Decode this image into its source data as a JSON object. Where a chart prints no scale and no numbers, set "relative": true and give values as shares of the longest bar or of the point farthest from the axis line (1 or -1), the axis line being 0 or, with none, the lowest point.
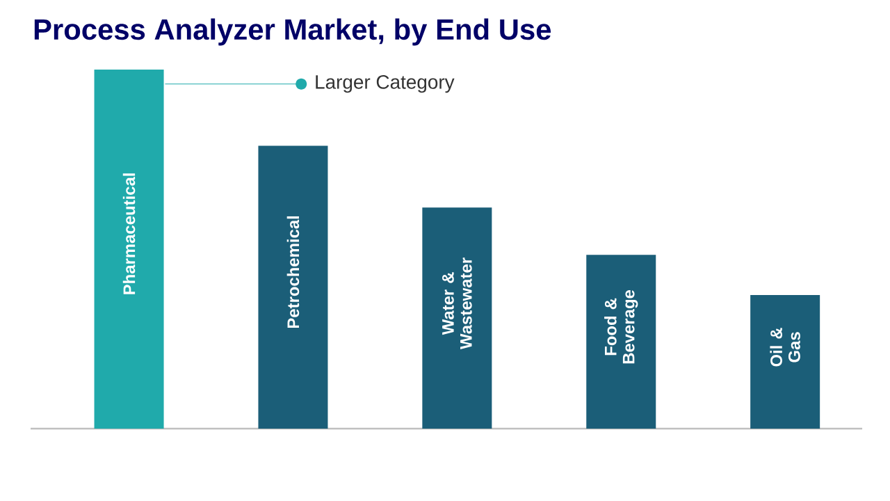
{
  "chart_data": {
    "type": "bar",
    "title": "Process Analyzer Market, by End Use",
    "relative": true,
    "categories": [
      "Pharmaceutical",
      "Petrochemical",
      "Water & Wastewater",
      "Food & Beverage",
      "Oil & Gas"
    ],
    "values": [
      1,
      0.788,
      0.616,
      0.484,
      0.372
    ],
    "colors": [
      "#20aaab",
      "#1b5e78",
      "#1b5e78",
      "#1b5e78",
      "#1b5e78"
    ],
    "annotations": [
      "Larger Category"
    ]
  }
}
